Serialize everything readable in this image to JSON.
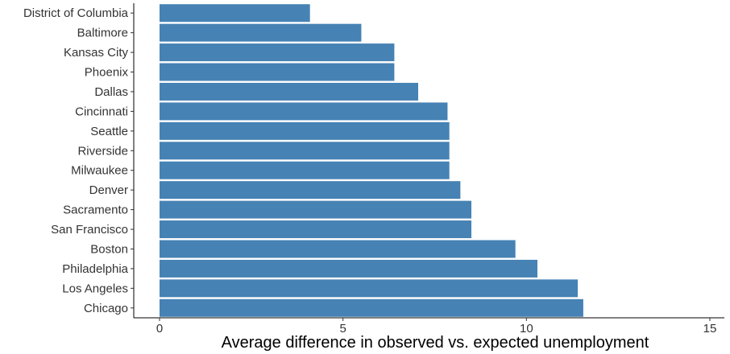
{
  "chart_data": {
    "type": "bar",
    "orientation": "horizontal",
    "categories": [
      "District of Columbia",
      "Baltimore",
      "Kansas City",
      "Phoenix",
      "Dallas",
      "Cincinnati",
      "Seattle",
      "Riverside",
      "Milwaukee",
      "Denver",
      "Sacramento",
      "San Francisco",
      "Boston",
      "Philadelphia",
      "Los Angeles",
      "Chicago"
    ],
    "values": [
      4.1,
      5.5,
      6.4,
      6.4,
      7.05,
      7.85,
      7.9,
      7.9,
      7.9,
      8.2,
      8.5,
      8.5,
      9.7,
      10.3,
      11.4,
      11.55
    ],
    "xlabel": "Average difference in observed vs. expected unemployment",
    "ylabel": "",
    "xlim": [
      0,
      15
    ],
    "xticks": [
      "0",
      "5",
      "10",
      "15"
    ],
    "bar_color": "#4682b4",
    "grid": false
  }
}
